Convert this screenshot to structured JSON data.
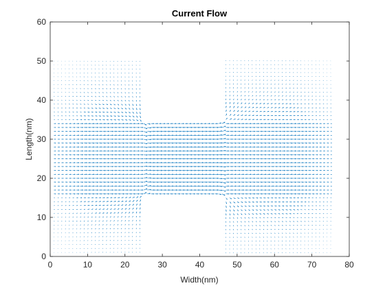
{
  "chart_data": {
    "type": "quiver",
    "title": "Current Flow",
    "xlabel": "Width(nm)",
    "ylabel": "Length(nm)",
    "xlim": [
      0,
      80
    ],
    "ylim": [
      0,
      60
    ],
    "xticks": [
      0,
      10,
      20,
      30,
      40,
      50,
      60,
      70,
      80
    ],
    "yticks": [
      0,
      10,
      20,
      30,
      40,
      50,
      60
    ],
    "grid": false,
    "box": true,
    "arrow_color": "#0072BD",
    "field": {
      "x_range": [
        1,
        75
      ],
      "y_range": [
        1,
        50
      ],
      "spacing": 1,
      "device_shape": "H-shaped conductor: left pad x 1-24, right pad x 47-75 (y 1-50), connected by a channel x 24-47 between y 16 and y 34",
      "flow_direction": "left to right, strongest in the central channel, converging into the channel from the left pad and diverging out into the right pad"
    }
  }
}
